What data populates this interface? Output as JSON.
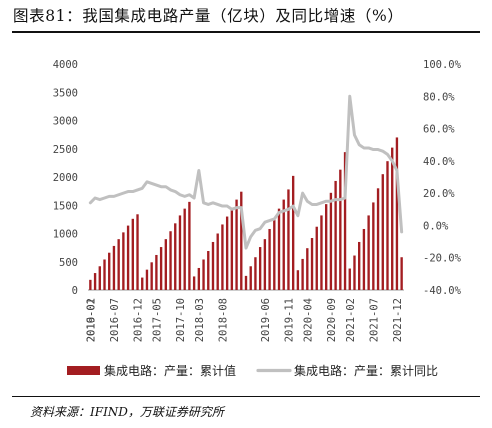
{
  "title": "图表81：我国集成电路产量（亿块）及同比增速（%）",
  "source": "资料来源：IFIND，万联证券研究所",
  "colors": {
    "bar": "#A31D21",
    "line": "#C0C0C0"
  },
  "chart_data": {
    "type": "bar",
    "title": "图表81：我国集成电路产量（亿块）及同比增速（%）",
    "xlabel": "",
    "ylabel": "",
    "y_left_lim": [
      0,
      4000
    ],
    "y_left_ticks": [
      "4000",
      "3500",
      "3000",
      "2500",
      "2000",
      "1500",
      "1000",
      "500",
      "0"
    ],
    "y_right_lim": [
      -40,
      100
    ],
    "y_right_ticks": [
      "100.0%",
      "80.0%",
      "60.0%",
      "40.0%",
      "20.0%",
      "0.0%",
      "-20.0%",
      "-40.0%"
    ],
    "x_tick_labels": [
      "2016-02",
      "2016-07",
      "2016-12",
      "2017-05",
      "2017-10",
      "2018-03",
      "2018-08",
      "2019-01",
      "2019-06",
      "2019-11",
      "2020-04",
      "2020-09",
      "2021-02",
      "2021-07",
      "2021-12"
    ],
    "grid": false,
    "legend": "bottom",
    "categories": [
      "2016-02",
      "2016-03",
      "2016-04",
      "2016-05",
      "2016-06",
      "2016-07",
      "2016-08",
      "2016-09",
      "2016-10",
      "2016-11",
      "2016-12",
      "2017-02",
      "2017-03",
      "2017-04",
      "2017-05",
      "2017-06",
      "2017-07",
      "2017-08",
      "2017-09",
      "2017-10",
      "2017-11",
      "2017-12",
      "2018-02",
      "2018-03",
      "2018-04",
      "2018-05",
      "2018-06",
      "2018-07",
      "2018-08",
      "2018-09",
      "2018-10",
      "2018-11",
      "2018-12",
      "2019-02",
      "2019-03",
      "2019-04",
      "2019-05",
      "2019-06",
      "2019-07",
      "2019-08",
      "2019-09",
      "2019-10",
      "2019-11",
      "2019-12",
      "2020-02",
      "2020-03",
      "2020-04",
      "2020-05",
      "2020-06",
      "2020-07",
      "2020-08",
      "2020-09",
      "2020-10",
      "2020-11",
      "2020-12",
      "2021-02",
      "2021-03",
      "2021-04",
      "2021-05",
      "2021-06",
      "2021-07",
      "2021-08",
      "2021-09",
      "2021-10",
      "2021-11",
      "2021-12",
      "2022-02"
    ],
    "series": [
      {
        "name": "集成电路：产量：累计值",
        "type": "bar",
        "axis": "left",
        "values": [
          180,
          300,
          420,
          540,
          660,
          780,
          900,
          1020,
          1140,
          1260,
          1340,
          220,
          360,
          490,
          620,
          760,
          900,
          1040,
          1180,
          1320,
          1440,
          1560,
          240,
          390,
          540,
          690,
          850,
          1000,
          1160,
          1300,
          1460,
          1600,
          1740,
          250,
          420,
          580,
          760,
          900,
          1080,
          1260,
          1440,
          1600,
          1780,
          2020,
          350,
          550,
          740,
          920,
          1120,
          1320,
          1520,
          1720,
          1930,
          2130,
          2440,
          380,
          610,
          850,
          1080,
          1320,
          1550,
          1800,
          2050,
          2280,
          2520,
          2700,
          580
        ]
      },
      {
        "name": "集成电路：产量：累计同比",
        "type": "line",
        "axis": "right",
        "values": [
          14,
          17,
          16,
          17,
          18,
          18,
          19,
          20,
          21,
          21,
          22,
          23,
          27,
          26,
          25,
          24,
          24,
          22,
          21,
          19,
          18,
          19,
          17,
          34,
          14,
          13,
          14,
          13,
          12,
          12,
          10,
          11,
          11,
          -14,
          -7,
          -3,
          -2,
          2,
          3,
          4,
          8,
          9,
          10,
          12,
          6,
          20,
          15,
          13,
          13,
          14,
          15,
          15,
          16,
          16,
          17,
          80,
          56,
          50,
          48,
          48,
          47,
          47,
          46,
          44,
          40,
          34,
          -4
        ]
      }
    ]
  }
}
